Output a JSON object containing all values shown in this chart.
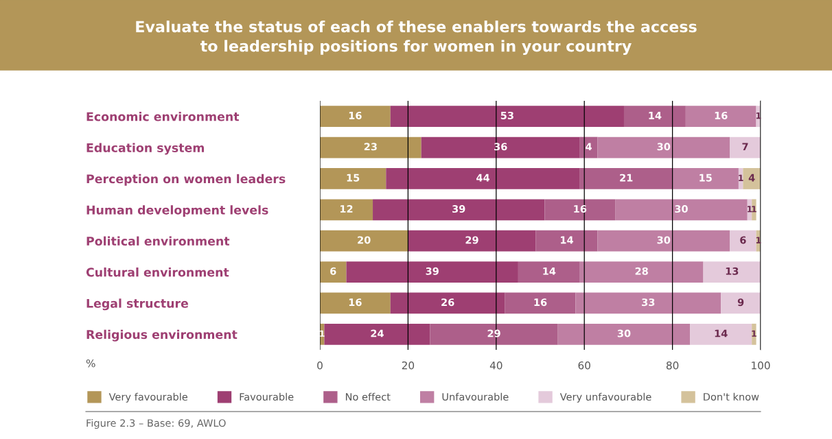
{
  "chart_data": {
    "type": "bar",
    "orientation": "horizontal",
    "stacked": true,
    "title": "Evaluate the status of each of these enablers towards the access\nto leadership positions for women in your country",
    "categories": [
      "Economic environment",
      "Education system",
      "Perception on women leaders",
      "Human development levels",
      "Political environment",
      "Cultural environment",
      "Legal structure",
      "Religious environment"
    ],
    "series": [
      {
        "name": "Very favourable",
        "color": "#b39658",
        "values": [
          16,
          23,
          15,
          12,
          20,
          6,
          16,
          1
        ]
      },
      {
        "name": "Favourable",
        "color": "#9e3f72",
        "values": [
          53,
          36,
          44,
          39,
          29,
          39,
          26,
          24
        ]
      },
      {
        "name": "No effect",
        "color": "#ad5f8a",
        "values": [
          14,
          4,
          21,
          16,
          14,
          14,
          16,
          29
        ]
      },
      {
        "name": "Unfavourable",
        "color": "#bf7fa3",
        "values": [
          16,
          30,
          15,
          30,
          30,
          28,
          33,
          30
        ]
      },
      {
        "name": "Very unfavourable",
        "color": "#e4cadb",
        "values": [
          1,
          7,
          1,
          1,
          6,
          13,
          9,
          14
        ]
      },
      {
        "name": "Don't know",
        "color": "#d4c29b",
        "values": [
          null,
          null,
          4,
          1,
          1,
          null,
          null,
          1
        ]
      }
    ],
    "xlabel": "%",
    "xlim": [
      0,
      100
    ],
    "xticks": [
      0,
      20,
      40,
      60,
      80,
      100
    ],
    "grid": "x",
    "legend": "bottom",
    "data_labels": true,
    "annotations": [
      "Figure 2.3 – Base: 69, AWLO"
    ]
  }
}
